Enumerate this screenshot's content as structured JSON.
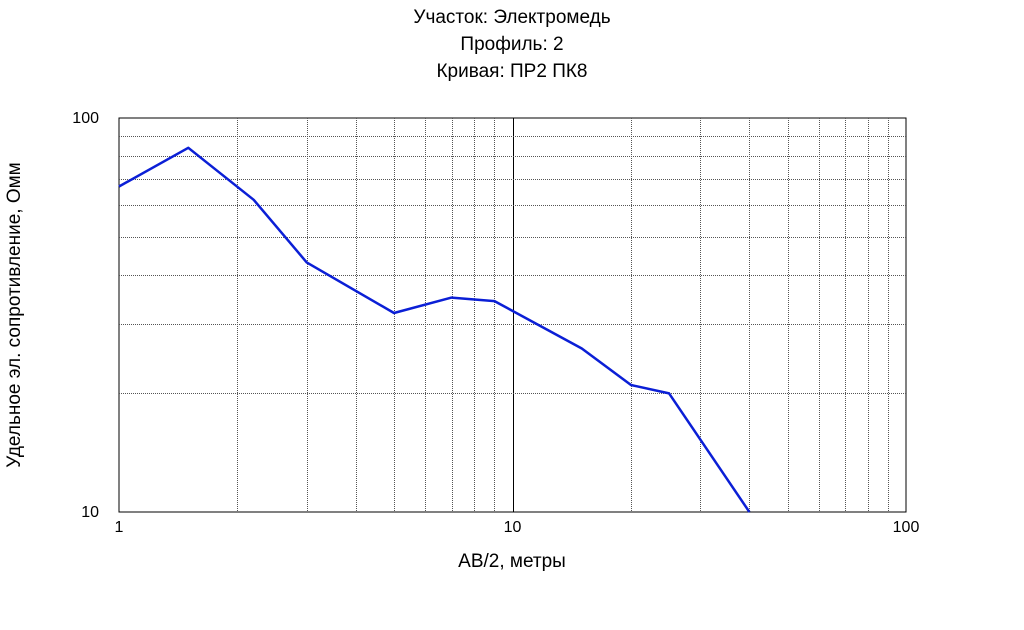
{
  "chart_data": {
    "type": "line",
    "title_lines": [
      "Участок: Электромедь",
      "Профиль: 2",
      "Кривая: ПР2 ПК8"
    ],
    "xlabel": "AB/2, метры",
    "ylabel": "Удельное эл. сопротивление, Омм",
    "x_scale": "log",
    "y_scale": "log",
    "xlim": [
      1,
      100
    ],
    "ylim": [
      10,
      100
    ],
    "x_ticks": [
      "1",
      "10",
      "100"
    ],
    "y_ticks": [
      "10",
      "100"
    ],
    "grid": true,
    "legend": "none",
    "series": [
      {
        "color": "#0b1fd6",
        "x": [
          1.0,
          1.5,
          2.2,
          3.0,
          5.0,
          7.0,
          9.0,
          15.0,
          20.0,
          25.0,
          40.0
        ],
        "y": [
          67,
          84,
          62,
          43,
          32,
          35,
          34.3,
          26,
          21,
          20,
          10
        ]
      }
    ]
  }
}
